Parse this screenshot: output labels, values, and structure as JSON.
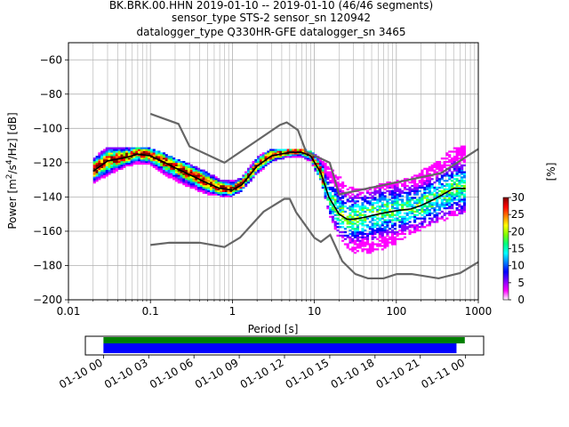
{
  "chart_data": {
    "type": "heatmap",
    "title_lines": [
      "BK.BRK.00.HHN   2019-01-10 -- 2019-01-10  (46/46 segments)",
      "sensor_type STS-2 sensor_sn 120942",
      "datalogger_type Q330HR-GFE datalogger_sn 3465"
    ],
    "xlabel": "Period [s]",
    "ylabel_main": "Power [m",
    "ylabel_sup1": "2",
    "ylabel_mid": "/s",
    "ylabel_sup2": "4",
    "ylabel_end": "/Hz] [dB]",
    "x_scale": "log",
    "xlim": [
      0.01,
      1000
    ],
    "ylim": [
      -200,
      -50
    ],
    "x_ticks": [
      0.01,
      0.1,
      1,
      10,
      100,
      1000
    ],
    "x_tick_labels": [
      "0.01",
      "0.1",
      "1",
      "10",
      "100",
      "1000"
    ],
    "y_ticks": [
      -200,
      -180,
      -160,
      -140,
      -120,
      -100,
      -80,
      -60
    ],
    "y_tick_labels": [
      "−200",
      "−180",
      "−160",
      "−140",
      "−120",
      "−100",
      "−80",
      "−60"
    ],
    "grid": true,
    "colorbar": {
      "label": "[%]",
      "range": [
        0,
        30
      ],
      "ticks": [
        0,
        5,
        10,
        15,
        20,
        25,
        30
      ],
      "tick_labels": [
        "0",
        "5",
        "10",
        "15",
        "20",
        "25",
        "30"
      ],
      "colors": [
        "#ffffff",
        "#ff00ff",
        "#8000ff",
        "#0000ff",
        "#0080ff",
        "#00ffff",
        "#00ff80",
        "#80ff00",
        "#ffff00",
        "#ff8000",
        "#ff0000",
        "#800000"
      ]
    },
    "mean_curve": {
      "color": "#000000",
      "x": [
        0.02,
        0.03,
        0.05,
        0.07,
        0.1,
        0.15,
        0.2,
        0.3,
        0.5,
        0.7,
        1,
        1.3,
        2,
        3,
        5,
        7,
        9,
        12,
        15,
        20,
        25,
        30,
        40,
        60,
        100,
        150,
        200,
        300,
        500,
        700
      ],
      "y": [
        -125,
        -119,
        -117,
        -115,
        -116,
        -120,
        -123,
        -127,
        -132,
        -135,
        -136,
        -133,
        -122,
        -116,
        -114,
        -114,
        -116,
        -126,
        -140,
        -150,
        -153,
        -153,
        -152,
        -150,
        -148,
        -147,
        -145,
        -141,
        -135,
        -135
      ]
    },
    "noise_models": {
      "color": "#666666",
      "high": {
        "x": [
          0.1,
          0.22,
          0.3,
          0.8,
          3.8,
          4.6,
          6.3,
          7.9,
          15.4,
          20,
          354.8,
          1000
        ],
        "y": [
          -91.5,
          -97.4,
          -110.5,
          -120,
          -98,
          -96.5,
          -101,
          -113.5,
          -120,
          -138.5,
          -126,
          -112
        ]
      },
      "low": {
        "x": [
          0.1,
          0.17,
          0.4,
          0.8,
          1.24,
          2.4,
          4.3,
          5,
          6,
          10,
          12,
          15.6,
          21.9,
          31.6,
          45,
          70,
          101,
          154,
          328,
          600,
          1000
        ],
        "y": [
          -168,
          -166.7,
          -166.7,
          -169.2,
          -163.7,
          -148.6,
          -141.1,
          -141.1,
          -149,
          -163.8,
          -166.2,
          -162.1,
          -177.5,
          -185,
          -187.5,
          -187.5,
          -185,
          -185,
          -187.5,
          -184.4,
          -178
        ]
      }
    },
    "pdf_envelope": {
      "x": [
        0.02,
        0.03,
        0.05,
        0.07,
        0.1,
        0.15,
        0.2,
        0.3,
        0.5,
        0.7,
        1,
        1.3,
        2,
        3,
        5,
        7,
        9,
        12,
        15,
        20,
        25,
        30,
        40,
        60,
        100,
        150,
        200,
        300,
        500,
        700
      ],
      "upper": [
        -118,
        -111,
        -112,
        -111,
        -112,
        -115,
        -118,
        -121,
        -126,
        -130,
        -131,
        -129,
        -117,
        -112,
        -112,
        -112,
        -114,
        -118,
        -123,
        -128,
        -134,
        -135,
        -136,
        -133,
        -131,
        -129,
        -125,
        -120,
        -112,
        -110
      ],
      "lower": [
        -133,
        -128,
        -123,
        -121,
        -122,
        -128,
        -131,
        -135,
        -139,
        -140,
        -140,
        -137,
        -127,
        -120,
        -117,
        -117,
        -120,
        -131,
        -150,
        -165,
        -170,
        -173,
        -174,
        -172,
        -168,
        -162,
        -160,
        -156,
        -152,
        -150
      ]
    },
    "time_axis": {
      "tick_labels": [
        "01-10 00",
        "01-10 03",
        "01-10 06",
        "01-10 09",
        "01-10 12",
        "01-10 15",
        "01-10 18",
        "01-10 21",
        "01-11 00"
      ],
      "tick_hours": [
        0,
        3,
        6,
        9,
        12,
        15,
        18,
        21,
        24
      ],
      "range_hours": [
        -1.2,
        25.2
      ],
      "green_bar": {
        "color": "#008000",
        "start_hours": 0,
        "end_hours": 23.95
      },
      "blue_bar": {
        "color": "#0000ff",
        "start_hours": 0,
        "end_hours": 23.4
      }
    }
  }
}
